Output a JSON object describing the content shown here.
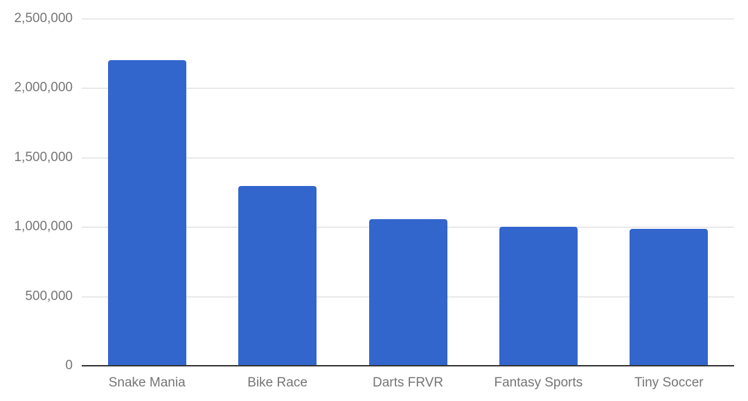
{
  "chart_data": {
    "type": "bar",
    "title": "",
    "xlabel": "",
    "ylabel": "",
    "categories": [
      "Snake Mania",
      "Bike Race",
      "Darts FRVR",
      "Fantasy Sports",
      "Tiny Soccer"
    ],
    "values": [
      2200000,
      1295000,
      1055000,
      1000000,
      985000
    ],
    "ylim": [
      0,
      2500000
    ],
    "yticks": [
      0,
      500000,
      1000000,
      1500000,
      2000000,
      2500000
    ],
    "ytick_labels": [
      "0",
      "500,000",
      "1,000,000",
      "1,500,000",
      "2,000,000",
      "2,500,000"
    ],
    "grid": true,
    "legend": null,
    "bar_color": "#3366cc"
  }
}
